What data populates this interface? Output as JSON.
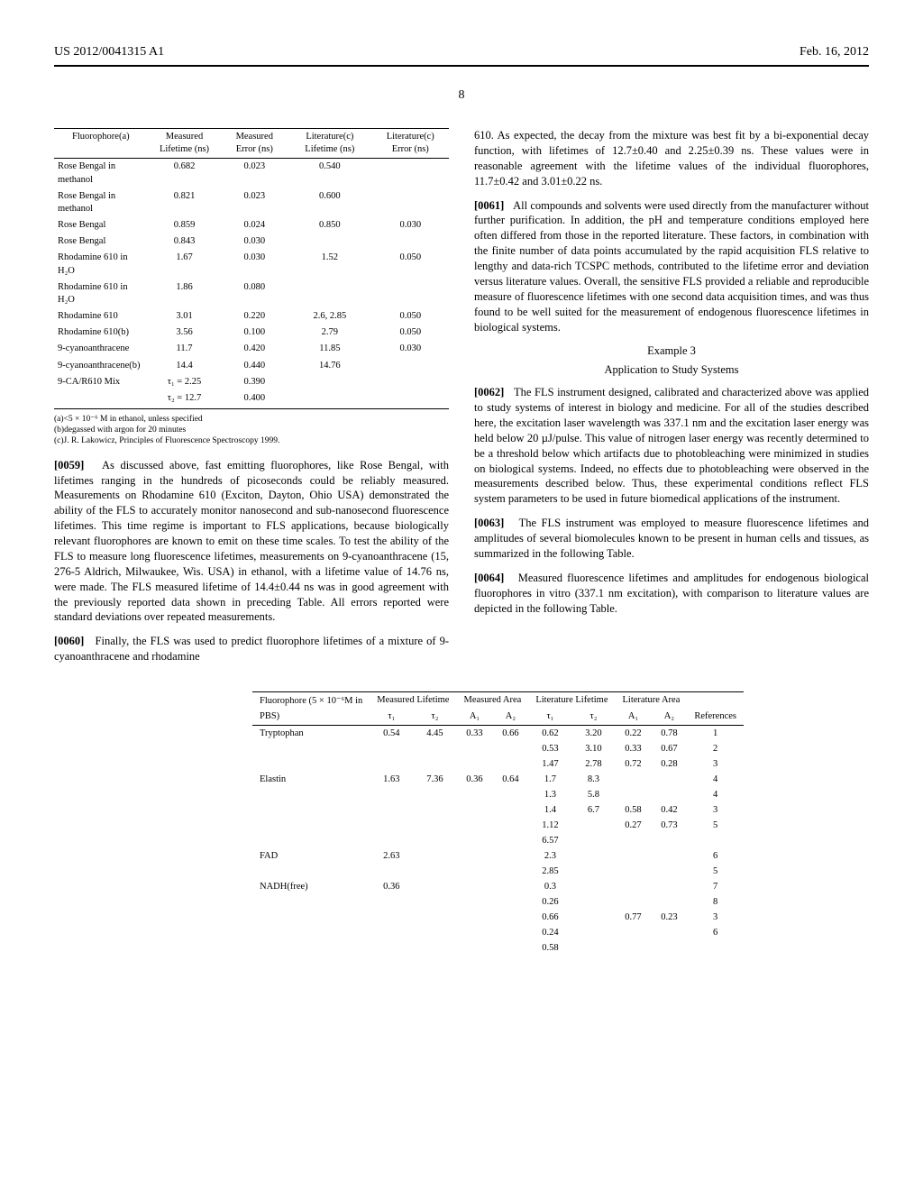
{
  "header": {
    "left": "US 2012/0041315 A1",
    "right": "Feb. 16, 2012"
  },
  "page_number": "8",
  "table1": {
    "columns": [
      "Fluorophore(a)",
      "Measured Lifetime (ns)",
      "Measured Error (ns)",
      "Literature(c) Lifetime (ns)",
      "Literature(c) Error (ns)"
    ],
    "rows": [
      [
        "Rose Bengal in methanol",
        "0.682",
        "0.023",
        "0.540",
        ""
      ],
      [
        "Rose Bengal in methanol",
        "0.821",
        "0.023",
        "0.600",
        ""
      ],
      [
        "Rose Bengal",
        "0.859",
        "0.024",
        "0.850",
        "0.030"
      ],
      [
        "Rose Bengal",
        "0.843",
        "0.030",
        "",
        ""
      ],
      [
        "Rhodamine 610 in H₂O",
        "1.67",
        "0.030",
        "1.52",
        "0.050"
      ],
      [
        "Rhodamine 610 in H₂O",
        "1.86",
        "0.080",
        "",
        ""
      ],
      [
        "Rhodamine 610",
        "3.01",
        "0.220",
        "2.6, 2.85",
        "0.050"
      ],
      [
        "Rhodamine 610(b)",
        "3.56",
        "0.100",
        "2.79",
        "0.050"
      ],
      [
        "9-cyanoanthracene",
        "11.7",
        "0.420",
        "11.85",
        "0.030"
      ],
      [
        "9-cyanoanthracene(b)",
        "14.4",
        "0.440",
        "14.76",
        ""
      ],
      [
        "9-CA/R610 Mix",
        "τ₁ = 2.25",
        "0.390",
        "",
        ""
      ],
      [
        "",
        "τ₂ = 12.7",
        "0.400",
        "",
        ""
      ]
    ],
    "footnotes": [
      "(a)<5 × 10⁻⁶ M in ethanol, unless specified",
      "(b)degassed with argon for 20 minutes",
      "(c)J. R. Lakowicz, Principles of Fluorescence Spectroscopy 1999."
    ]
  },
  "paragraphs": {
    "p59_num": "[0059]",
    "p59": "As discussed above, fast emitting fluorophores, like Rose Bengal, with lifetimes ranging in the hundreds of picoseconds could be reliably measured. Measurements on Rhodamine 610 (Exciton, Dayton, Ohio USA) demonstrated the ability of the FLS to accurately monitor nanosecond and sub-nanosecond fluorescence lifetimes. This time regime is important to FLS applications, because biologically relevant fluorophores are known to emit on these time scales. To test the ability of the FLS to measure long fluorescence lifetimes, measurements on 9-cyanoanthracene (15, 276-5 Aldrich, Milwaukee, Wis. USA) in ethanol, with a lifetime value of 14.76 ns, were made. The FLS measured lifetime of 14.4±0.44 ns was in good agreement with the previously reported data shown in preceding Table. All errors reported were standard deviations over repeated measurements.",
    "p60_num": "[0060]",
    "p60": "Finally, the FLS was used to predict fluorophore lifetimes of a mixture of 9-cyanoanthracene and rhodamine",
    "p60_cont": "610. As expected, the decay from the mixture was best fit by a bi-exponential decay function, with lifetimes of 12.7±0.40 and 2.25±0.39 ns. These values were in reasonable agreement with the lifetime values of the individual fluorophores, 11.7±0.42 and 3.01±0.22 ns.",
    "p61_num": "[0061]",
    "p61": "All compounds and solvents were used directly from the manufacturer without further purification. In addition, the pH and temperature conditions employed here often differed from those in the reported literature. These factors, in combination with the finite number of data points accumulated by the rapid acquisition FLS relative to lengthy and data-rich TCSPC methods, contributed to the lifetime error and deviation versus literature values. Overall, the sensitive FLS provided a reliable and reproducible measure of fluorescence lifetimes with one second data acquisition times, and was thus found to be well suited for the measurement of endogenous fluorescence lifetimes in biological systems.",
    "ex3_title": "Example 3",
    "ex3_sub": "Application to Study Systems",
    "p62_num": "[0062]",
    "p62": "The FLS instrument designed, calibrated and characterized above was applied to study systems of interest in biology and medicine. For all of the studies described here, the excitation laser wavelength was 337.1 nm and the excitation laser energy was held below 20 µJ/pulse. This value of nitrogen laser energy was recently determined to be a threshold below which artifacts due to photobleaching were minimized in studies on biological systems. Indeed, no effects due to photobleaching were observed in the measurements described below. Thus, these experimental conditions reflect FLS system parameters to be used in future biomedical applications of the instrument.",
    "p63_num": "[0063]",
    "p63": "The FLS instrument was employed to measure fluorescence lifetimes and amplitudes of several biomolecules known to be present in human cells and tissues, as summarized in the following Table.",
    "p64_num": "[0064]",
    "p64": "Measured fluorescence lifetimes and amplitudes for endogenous biological fluorophores in vitro (337.1 nm excitation), with comparison to literature values are depicted in the following Table."
  },
  "table2": {
    "head1": [
      "Fluorophore (5 × 10⁻⁶M in",
      "Measured Lifetime",
      "Measured Area",
      "Literature Lifetime",
      "Literature Area",
      ""
    ],
    "head2": [
      "PBS)",
      "τ₁",
      "τ₂",
      "A₁",
      "A₂",
      "τ₁",
      "τ₂",
      "A₁",
      "A₂",
      "References"
    ],
    "rows": [
      [
        "Tryptophan",
        "0.54",
        "4.45",
        "0.33",
        "0.66",
        "0.62",
        "3.20",
        "0.22",
        "0.78",
        "1"
      ],
      [
        "",
        "",
        "",
        "",
        "",
        "0.53",
        "3.10",
        "0.33",
        "0.67",
        "2"
      ],
      [
        "",
        "",
        "",
        "",
        "",
        "1.47",
        "2.78",
        "0.72",
        "0.28",
        "3"
      ],
      [
        "Elastin",
        "1.63",
        "7.36",
        "0.36",
        "0.64",
        "1.7",
        "8.3",
        "",
        "",
        "4"
      ],
      [
        "",
        "",
        "",
        "",
        "",
        "1.3",
        "5.8",
        "",
        "",
        "4"
      ],
      [
        "",
        "",
        "",
        "",
        "",
        "1.4",
        "6.7",
        "0.58",
        "0.42",
        "3"
      ],
      [
        "",
        "",
        "",
        "",
        "",
        "1.12",
        "",
        "0.27",
        "0.73",
        "5"
      ],
      [
        "",
        "",
        "",
        "",
        "",
        "6.57",
        "",
        "",
        "",
        ""
      ],
      [
        "FAD",
        "2.63",
        "",
        "",
        "",
        "2.3",
        "",
        "",
        "",
        "6"
      ],
      [
        "",
        "",
        "",
        "",
        "",
        "2.85",
        "",
        "",
        "",
        "5"
      ],
      [
        "NADH(free)",
        "0.36",
        "",
        "",
        "",
        "0.3",
        "",
        "",
        "",
        "7"
      ],
      [
        "",
        "",
        "",
        "",
        "",
        "0.26",
        "",
        "",
        "",
        "8"
      ],
      [
        "",
        "",
        "",
        "",
        "",
        "0.66",
        "",
        "0.77",
        "0.23",
        "3"
      ],
      [
        "",
        "",
        "",
        "",
        "",
        "0.24",
        "",
        "",
        "",
        "6"
      ],
      [
        "",
        "",
        "",
        "",
        "",
        "0.58",
        "",
        "",
        "",
        ""
      ]
    ]
  }
}
